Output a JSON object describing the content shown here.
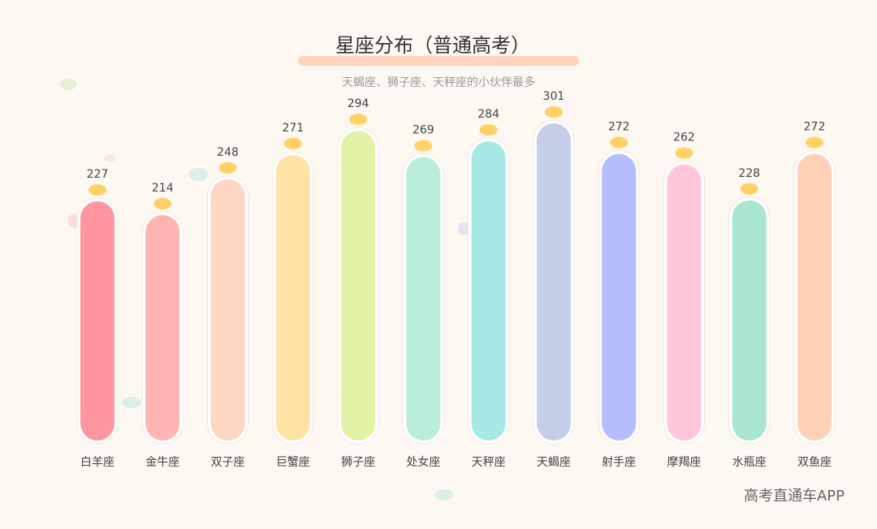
{
  "chart_data": {
    "type": "bar",
    "title": "星座分布（普通高考）",
    "subtitle": "天蝎座、狮子座、天秤座的小伙伴最多",
    "watermark": "高考直通车APP",
    "categories": [
      "白羊座",
      "金牛座",
      "双子座",
      "巨蟹座",
      "狮子座",
      "处女座",
      "天秤座",
      "天蝎座",
      "射手座",
      "摩羯座",
      "水瓶座",
      "双鱼座"
    ],
    "values": [
      227,
      214,
      248,
      271,
      294,
      269,
      284,
      301,
      272,
      262,
      228,
      272
    ],
    "colors": [
      "#ff96a2",
      "#ffb6b2",
      "#ffd6c2",
      "#ffe2a6",
      "#e1f1a6",
      "#b9ecd9",
      "#a6e8e4",
      "#c6cde8",
      "#b6bdff",
      "#ffc6dc",
      "#a9e6d1",
      "#ffd1b6"
    ]
  }
}
